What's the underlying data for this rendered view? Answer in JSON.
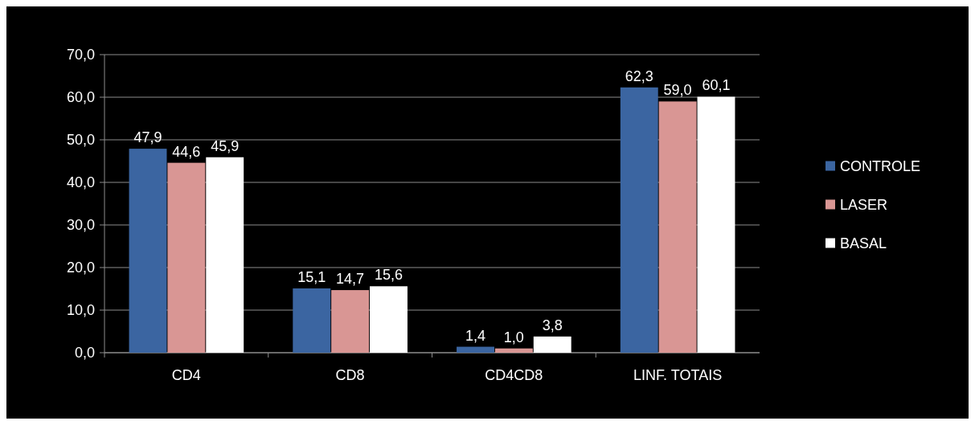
{
  "chart_data": {
    "type": "bar",
    "categories": [
      "CD4",
      "CD8",
      "CD4CD8",
      "LINF. TOTAIS"
    ],
    "series": [
      {
        "name": "CONTROLE",
        "color": "#3b65a1",
        "values": [
          47.9,
          15.1,
          1.4,
          62.3
        ],
        "value_labels": [
          "47,9",
          "15,1",
          "1,4",
          "62,3"
        ]
      },
      {
        "name": "LASER",
        "color": "#d99694",
        "values": [
          44.6,
          14.7,
          1.0,
          59.0
        ],
        "value_labels": [
          "44,6",
          "14,7",
          "1,0",
          "59,0"
        ]
      },
      {
        "name": "BASAL",
        "color": "#ffffff",
        "values": [
          45.9,
          15.6,
          3.8,
          60.1
        ],
        "value_labels": [
          "45,9",
          "15,6",
          "3,8",
          "60,1"
        ]
      }
    ],
    "ylim": [
      0,
      70
    ],
    "yticks": [
      {
        "value": 0,
        "label": "0,0"
      },
      {
        "value": 10,
        "label": "10,0"
      },
      {
        "value": 20,
        "label": "20,0"
      },
      {
        "value": 30,
        "label": "30,0"
      },
      {
        "value": 40,
        "label": "40,0"
      },
      {
        "value": 50,
        "label": "50,0"
      },
      {
        "value": 60,
        "label": "60,0"
      },
      {
        "value": 70,
        "label": "70,0"
      }
    ],
    "grid": "y",
    "legend": "right"
  }
}
